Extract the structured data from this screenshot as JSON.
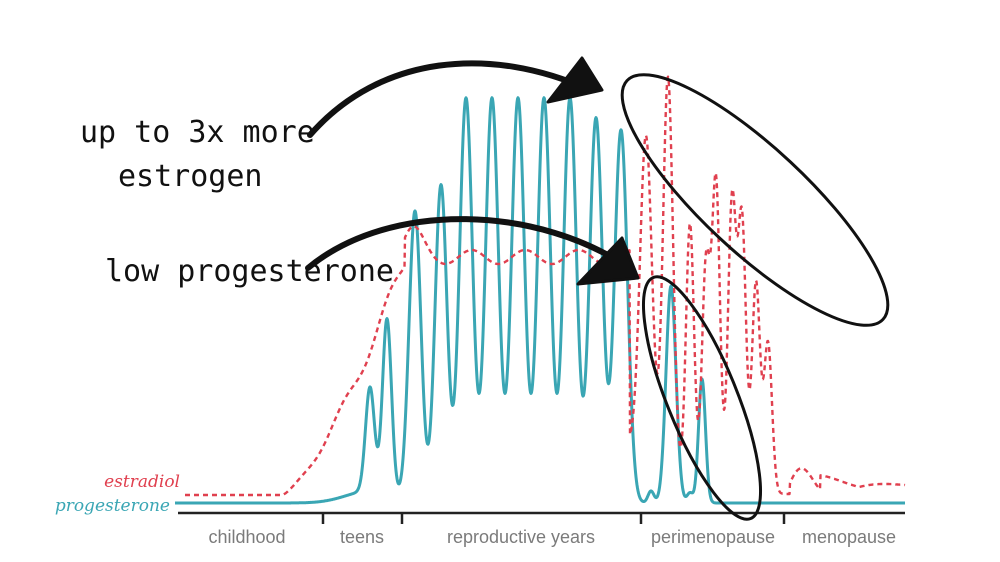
{
  "annotations": {
    "estrogen_line1": "up to 3x more",
    "estrogen_line2": "estrogen",
    "progesterone": "low progesterone"
  },
  "legend": {
    "estradiol": "estradiol",
    "progesterone": "progesterone"
  },
  "stages": [
    {
      "label": "childhood"
    },
    {
      "label": "teens"
    },
    {
      "label": "reproductive years"
    },
    {
      "label": "perimenopause"
    },
    {
      "label": "menopause"
    }
  ],
  "colors": {
    "estradiol": "#e0404f",
    "progesterone": "#3aa6b4",
    "ink": "#111111",
    "axis": "#222222",
    "stage_text": "#7b7b7b"
  }
}
